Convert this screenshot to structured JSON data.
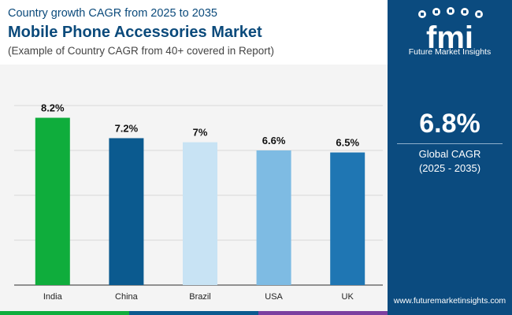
{
  "header": {
    "kicker": "Country growth CAGR from 2025 to 2035",
    "title": "Mobile Phone Accessories Market",
    "subtitle": "(Example of Country CAGR from 40+ covered in Report)"
  },
  "side_panel": {
    "logo_letters": "fmi",
    "logo_text": "Future Market Insights",
    "global_value": "6.8%",
    "global_label": "Global CAGR",
    "global_period": "(2025 - 2035)",
    "website": "www.futuremarketinsights.com"
  },
  "colors": {
    "panel": "#0b4b7f",
    "title": "#0b4a7b",
    "bar_colors": [
      "#0fad3c",
      "#0b5a8f",
      "#c8e3f4",
      "#7ebbe3",
      "#1f76b3"
    ],
    "bottom_bar": [
      "#0fad3c",
      "#0b5a8f",
      "#7b3fa0"
    ]
  },
  "chart_data": {
    "type": "bar",
    "categories": [
      "India",
      "China",
      "Brazil",
      "USA",
      "UK"
    ],
    "values": [
      8.2,
      7.2,
      7.0,
      6.6,
      6.5
    ],
    "data_labels": [
      "8.2%",
      "7.2%",
      "7%",
      "6.6%",
      "6.5%"
    ],
    "title": "",
    "xlabel": "",
    "ylabel": "",
    "ylim": [
      0,
      8.8
    ],
    "grid": true,
    "gridlines": [
      0,
      2.2,
      4.4,
      6.6,
      8.8
    ],
    "legend": "none"
  }
}
